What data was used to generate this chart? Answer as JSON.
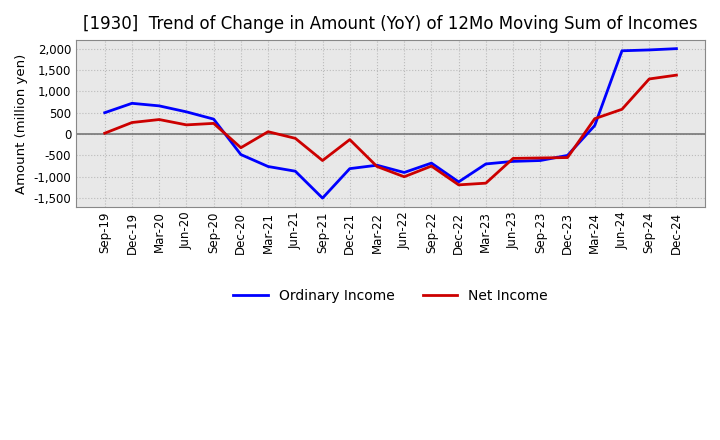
{
  "title": "[1930]  Trend of Change in Amount (YoY) of 12Mo Moving Sum of Incomes",
  "ylabel": "Amount (million yen)",
  "background_color": "#ffffff",
  "plot_background_color": "#e8e8e8",
  "grid_color": "#bbbbbb",
  "labels": [
    "Sep-19",
    "Dec-19",
    "Mar-20",
    "Jun-20",
    "Sep-20",
    "Dec-20",
    "Mar-21",
    "Jun-21",
    "Sep-21",
    "Dec-21",
    "Mar-22",
    "Jun-22",
    "Sep-22",
    "Dec-22",
    "Mar-23",
    "Jun-23",
    "Sep-23",
    "Dec-23",
    "Mar-24",
    "Jun-24",
    "Sep-24",
    "Dec-24"
  ],
  "ordinary_income": [
    500,
    720,
    660,
    520,
    350,
    -480,
    -760,
    -870,
    -1500,
    -810,
    -730,
    -900,
    -680,
    -1120,
    -700,
    -640,
    -620,
    -500,
    200,
    1950,
    1970,
    2000
  ],
  "net_income": [
    20,
    270,
    340,
    215,
    250,
    -320,
    55,
    -100,
    -620,
    -130,
    -760,
    -1000,
    -750,
    -1190,
    -1150,
    -570,
    -560,
    -550,
    360,
    580,
    1290,
    1380
  ],
  "ordinary_color": "#0000ff",
  "net_color": "#cc0000",
  "ylim": [
    -1700,
    2200
  ],
  "yticks": [
    -1500,
    -1000,
    -500,
    0,
    500,
    1000,
    1500,
    2000
  ],
  "line_width": 2.0,
  "title_fontsize": 12,
  "legend_fontsize": 10,
  "tick_fontsize": 8.5
}
